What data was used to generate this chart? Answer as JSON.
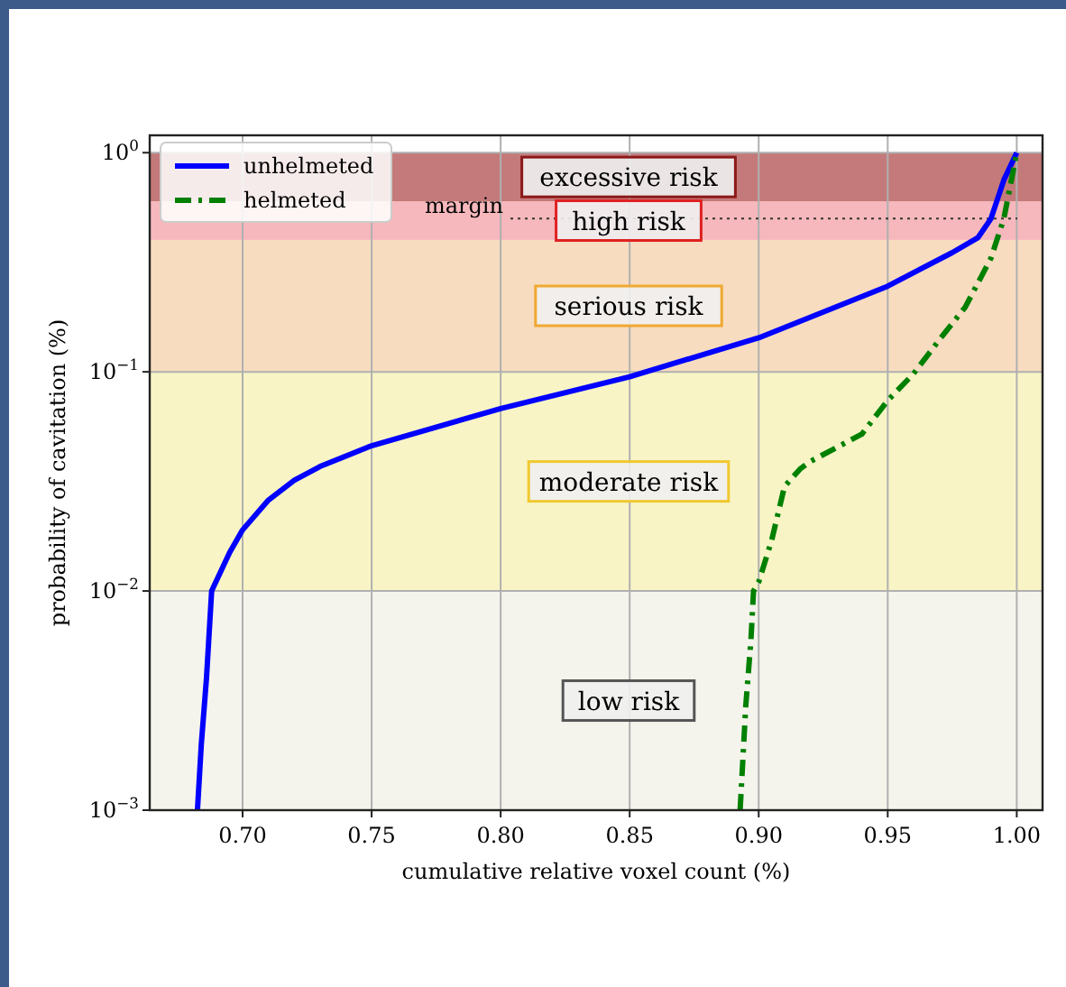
{
  "chart_data": {
    "type": "line",
    "xlabel": "cumulative relative voxel count (%)",
    "ylabel": "probability of cavitation (%)",
    "log": "y",
    "grid": true,
    "legend": "top left",
    "xlim": [
      0.664,
      1.01
    ],
    "ylim": [
      0.001,
      1.2
    ],
    "xticks": [
      {
        "value": 0.7,
        "label": "0.70"
      },
      {
        "value": 0.75,
        "label": "0.75"
      },
      {
        "value": 0.8,
        "label": "0.80"
      },
      {
        "value": 0.85,
        "label": "0.85"
      },
      {
        "value": 0.9,
        "label": "0.90"
      },
      {
        "value": 0.95,
        "label": "0.95"
      },
      {
        "value": 1.0,
        "label": "1.00"
      }
    ],
    "yticks": [
      {
        "value": 0.001,
        "label": "10$^{−3}$"
      },
      {
        "value": 0.01,
        "label": "10$^{−2}$"
      },
      {
        "value": 0.1,
        "label": "10$^{−1}$"
      },
      {
        "value": 1,
        "label": "10$^{0}$"
      }
    ],
    "series": [
      {
        "name": "unhelmeted",
        "color": "#0000ff",
        "line_style": "solid",
        "x": [
          0.6825,
          0.684,
          0.686,
          0.688,
          0.695,
          0.7,
          0.71,
          0.72,
          0.73,
          0.75,
          0.8,
          0.85,
          0.9,
          0.95,
          0.975,
          0.985,
          0.99,
          0.995,
          1.0
        ],
        "values": [
          0.001,
          0.002,
          0.004,
          0.01,
          0.015,
          0.019,
          0.026,
          0.032,
          0.037,
          0.046,
          0.068,
          0.095,
          0.143,
          0.246,
          0.35,
          0.41,
          0.5,
          0.75,
          1.0
        ]
      },
      {
        "name": "helmeted",
        "color": "#008000",
        "line_style": "dashdot",
        "x": [
          0.8928,
          0.895,
          0.897,
          0.898,
          0.9,
          0.905,
          0.91,
          0.916,
          0.92,
          0.94,
          0.95,
          0.96,
          0.97,
          0.98,
          0.99,
          0.995,
          1.0
        ],
        "values": [
          0.001,
          0.003,
          0.006,
          0.01,
          0.011,
          0.017,
          0.03,
          0.036,
          0.039,
          0.052,
          0.074,
          0.098,
          0.14,
          0.197,
          0.33,
          0.5,
          1.0
        ]
      }
    ],
    "bands": [
      {
        "axis": "y",
        "from": 0.001,
        "to": 0.01,
        "label": "low risk",
        "color": "#f5f4ec"
      },
      {
        "axis": "y",
        "from": 0.01,
        "to": 0.1,
        "label": "moderate risk",
        "color": "#f8f4c6"
      },
      {
        "axis": "y",
        "from": 0.1,
        "to": 0.4,
        "label": "serious risk",
        "color": "#f7dcc0"
      },
      {
        "axis": "y",
        "from": 0.4,
        "to": 0.6,
        "label": "high risk",
        "color": "#f6b8bc"
      },
      {
        "axis": "y",
        "from": 0.6,
        "to": 1.0,
        "label": "excessive risk",
        "color": "#c47a7a"
      }
    ],
    "ref_lines": [
      {
        "axis": "y",
        "value": 0.5,
        "label": "margin",
        "line_style": "dotted",
        "color": "#333333"
      }
    ]
  }
}
